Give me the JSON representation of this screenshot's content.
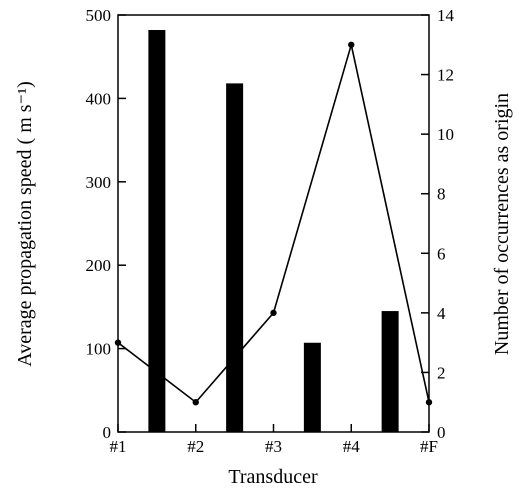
{
  "chart_data": {
    "type": "bar",
    "xlabel": "Transducer",
    "ylabel_left": "Average propagation speed ( m s⁻¹)",
    "ylabel_right": "Number of occurrences as origin",
    "categories": [
      "#1",
      "#2",
      "#3",
      "#4",
      "#F"
    ],
    "left_axis": {
      "min": 0,
      "max": 500,
      "ticks": [
        0,
        100,
        200,
        300,
        400,
        500
      ]
    },
    "right_axis": {
      "min": 0,
      "max": 14,
      "ticks": [
        0,
        2,
        4,
        6,
        8,
        10,
        12,
        14
      ]
    },
    "bars": {
      "axis": "left",
      "color": "#000000",
      "positions": [
        "#1-#2",
        "#2-#3",
        "#3-#4",
        "#4-#F"
      ],
      "values": [
        482,
        418,
        107,
        145
      ]
    },
    "line": {
      "axis": "right",
      "color": "#000000",
      "x": [
        "#1",
        "#2",
        "#3",
        "#4",
        "#F"
      ],
      "values": [
        3,
        1,
        4,
        13,
        1
      ]
    },
    "grid": false
  }
}
